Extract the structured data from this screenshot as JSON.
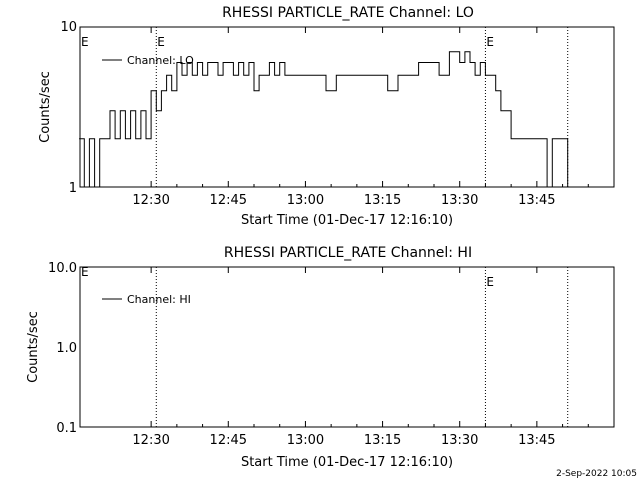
{
  "chart_data": [
    {
      "type": "line",
      "title": "RHESSI PARTICLE_RATE Channel: LO",
      "xlabel": "Start Time (01-Dec-17 12:16:10)",
      "ylabel": "Counts/sec",
      "yscale": "log",
      "ylim": [
        1,
        10
      ],
      "yticks": [
        "1",
        "10"
      ],
      "xlim": [
        "12:16:10",
        "14:00:00"
      ],
      "xticks": [
        "12:30",
        "12:45",
        "13:00",
        "13:15",
        "13:30",
        "13:45"
      ],
      "event_markers": [
        {
          "time": "12:31",
          "label": "E"
        },
        {
          "time": "13:35",
          "label": "E"
        },
        {
          "time": "13:51",
          "label": ""
        }
      ],
      "left_marker_label": "E",
      "legend": [
        "Channel: LO"
      ],
      "legend_position": "top-left",
      "series": [
        {
          "name": "Channel: LO",
          "x": [
            "12:16",
            "12:17",
            "12:18",
            "12:19",
            "12:20",
            "12:21",
            "12:22",
            "12:23",
            "12:24",
            "12:25",
            "12:26",
            "12:27",
            "12:28",
            "12:29",
            "12:30",
            "12:31",
            "12:32",
            "12:33",
            "12:34",
            "12:35",
            "12:36",
            "12:37",
            "12:38",
            "12:39",
            "12:40",
            "12:41",
            "12:42",
            "12:43",
            "12:44",
            "12:45",
            "12:46",
            "12:47",
            "12:48",
            "12:49",
            "12:50",
            "12:51",
            "12:52",
            "12:53",
            "12:54",
            "12:55",
            "12:56",
            "12:57",
            "12:58",
            "12:59",
            "13:00",
            "13:02",
            "13:04",
            "13:06",
            "13:08",
            "13:10",
            "13:12",
            "13:14",
            "13:16",
            "13:18",
            "13:20",
            "13:22",
            "13:24",
            "13:26",
            "13:28",
            "13:30",
            "13:31",
            "13:32",
            "13:33",
            "13:34",
            "13:35",
            "13:36",
            "13:37",
            "13:38",
            "13:39",
            "13:40",
            "13:41",
            "13:42",
            "13:43",
            "13:44",
            "13:45",
            "13:46",
            "13:47",
            "13:48",
            "13:49",
            "13:50",
            "13:51"
          ],
          "y": [
            2,
            1,
            2,
            1,
            2,
            2,
            3,
            2,
            3,
            2,
            3,
            2,
            3,
            2,
            4,
            3,
            4,
            5,
            4,
            6,
            5,
            6,
            5,
            6,
            5,
            6,
            6,
            5,
            6,
            6,
            5,
            6,
            5,
            6,
            4,
            5,
            5,
            6,
            5,
            6,
            5,
            5,
            5,
            5,
            5,
            5,
            4,
            5,
            5,
            5,
            5,
            5,
            4,
            5,
            5,
            6,
            6,
            5,
            7,
            6,
            7,
            6,
            5,
            6,
            5,
            5,
            4,
            3,
            3,
            2,
            2,
            2,
            2,
            2,
            2,
            2,
            1,
            2,
            2,
            2,
            1
          ]
        }
      ]
    },
    {
      "type": "line",
      "title": "RHESSI PARTICLE_RATE Channel: HI",
      "xlabel": "Start Time (01-Dec-17 12:16:10)",
      "ylabel": "Counts/sec",
      "yscale": "log",
      "ylim": [
        0.1,
        10.0
      ],
      "yticks": [
        "0.1",
        "1.0",
        "10.0"
      ],
      "xlim": [
        "12:16:10",
        "14:00:00"
      ],
      "xticks": [
        "12:30",
        "12:45",
        "13:00",
        "13:15",
        "13:30",
        "13:45"
      ],
      "event_markers": [
        {
          "time": "12:31",
          "label": ""
        },
        {
          "time": "13:35",
          "label": "E"
        },
        {
          "time": "13:51",
          "label": ""
        }
      ],
      "left_marker_label": "E",
      "legend": [
        "Channel: HI"
      ],
      "legend_position": "top-left",
      "series": [
        {
          "name": "Channel: HI",
          "x": [],
          "y": []
        }
      ]
    }
  ],
  "footer": {
    "timestamp": "2-Sep-2022 10:05"
  }
}
